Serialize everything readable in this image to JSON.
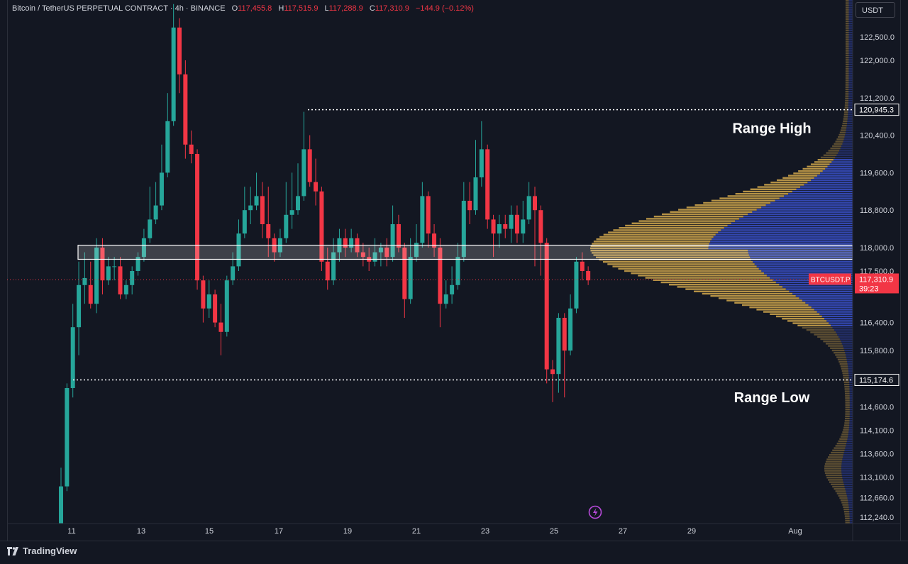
{
  "header": {
    "symbol": "Bitcoin / TetherUS PERPETUAL CONTRACT · 4h · BINANCE",
    "open_label": "O",
    "open": "117,455.8",
    "high_label": "H",
    "high": "117,515.9",
    "low_label": "L",
    "low": "117,288.9",
    "close_label": "C",
    "close": "117,310.9",
    "change": "−144.9 (−0.12%)"
  },
  "currency": "USDT",
  "brand": "TradingView",
  "colors": {
    "up": "#26a69a",
    "down": "#f23645",
    "background": "#131722",
    "vp_up": "#c8a04a",
    "vp_down": "#3a50c8"
  },
  "chart_data": {
    "type": "candlestick",
    "title": "",
    "x_ticks": [
      "11",
      "13",
      "15",
      "17",
      "19",
      "21",
      "23",
      "25",
      "27",
      "29",
      "Aug"
    ],
    "y_ticks": [
      "122,500.0",
      "122,000.0",
      "121,200.0",
      "120,400.0",
      "119,600.0",
      "118,800.0",
      "118,000.0",
      "117,500.0",
      "116,400.0",
      "115,800.0",
      "114,600.0",
      "114,100.0",
      "113,600.0",
      "113,100.0",
      "112,660.0",
      "112,240.0"
    ],
    "ylim": [
      112100,
      123300
    ],
    "candles": [
      [
        111400,
        112900,
        111100,
        113300
      ],
      [
        112900,
        115000,
        112800,
        115100
      ],
      [
        115000,
        116300,
        114800,
        116800
      ],
      [
        116300,
        117200,
        115700,
        117700
      ],
      [
        117200,
        117350,
        116800,
        117900
      ],
      [
        117200,
        116800,
        116700,
        117700
      ],
      [
        116800,
        118000,
        116600,
        118200
      ],
      [
        118000,
        117300,
        117000,
        118200
      ],
      [
        117300,
        117600,
        117200,
        117800
      ],
      [
        117600,
        117600,
        117300,
        117800
      ],
      [
        117600,
        117000,
        116900,
        117800
      ],
      [
        117000,
        117200,
        116900,
        117300
      ],
      [
        117200,
        117500,
        117000,
        117600
      ],
      [
        117500,
        117800,
        117400,
        117900
      ],
      [
        117800,
        118200,
        117700,
        118400
      ],
      [
        118200,
        118600,
        118100,
        119300
      ],
      [
        118600,
        118900,
        118500,
        119400
      ],
      [
        118900,
        119600,
        118800,
        120200
      ],
      [
        119600,
        120700,
        119500,
        121300
      ],
      [
        120700,
        122700,
        120600,
        123200
      ],
      [
        122700,
        121700,
        121300,
        122900
      ],
      [
        121700,
        120200,
        119900,
        122000
      ],
      [
        120200,
        120000,
        119800,
        120500
      ],
      [
        120000,
        117300,
        117100,
        120100
      ],
      [
        117300,
        116700,
        116400,
        117400
      ],
      [
        116700,
        117000,
        116500,
        117300
      ],
      [
        117000,
        116400,
        116300,
        117100
      ],
      [
        116400,
        116200,
        115700,
        116800
      ],
      [
        116200,
        117300,
        116100,
        117400
      ],
      [
        117300,
        117600,
        117200,
        117900
      ],
      [
        117600,
        118300,
        117500,
        118600
      ],
      [
        118300,
        118800,
        118200,
        119300
      ],
      [
        118800,
        118900,
        118500,
        119300
      ],
      [
        118900,
        119100,
        118800,
        119600
      ],
      [
        119100,
        118500,
        118200,
        119400
      ],
      [
        118500,
        118200,
        117800,
        119300
      ],
      [
        118200,
        117900,
        117700,
        118300
      ],
      [
        117900,
        118200,
        117800,
        118400
      ],
      [
        118200,
        118700,
        118100,
        119400
      ],
      [
        118700,
        118800,
        118400,
        119600
      ],
      [
        118800,
        119100,
        118700,
        119800
      ],
      [
        119100,
        120100,
        119000,
        120900
      ],
      [
        120100,
        119400,
        119300,
        120400
      ],
      [
        119400,
        119200,
        118900,
        119900
      ],
      [
        119200,
        117700,
        117500,
        119300
      ],
      [
        117700,
        117300,
        117100,
        118000
      ],
      [
        117300,
        117900,
        117200,
        118200
      ],
      [
        117900,
        118200,
        117700,
        118400
      ],
      [
        118200,
        118000,
        117800,
        118400
      ],
      [
        118000,
        118200,
        117900,
        118400
      ],
      [
        118200,
        117900,
        117800,
        118300
      ],
      [
        117900,
        117800,
        117600,
        118100
      ],
      [
        117800,
        117700,
        117500,
        118000
      ],
      [
        117700,
        117900,
        117600,
        118200
      ],
      [
        117900,
        118000,
        117600,
        118100
      ],
      [
        118000,
        117800,
        117600,
        118200
      ],
      [
        117800,
        118500,
        117700,
        118900
      ],
      [
        118500,
        118000,
        117900,
        118700
      ],
      [
        118000,
        116900,
        116500,
        118100
      ],
      [
        116900,
        117800,
        116800,
        118200
      ],
      [
        117800,
        118100,
        117700,
        118500
      ],
      [
        118100,
        119100,
        118000,
        119400
      ],
      [
        119100,
        118300,
        118000,
        119200
      ],
      [
        118300,
        118000,
        117800,
        118500
      ],
      [
        118000,
        116800,
        116300,
        118200
      ],
      [
        116800,
        117000,
        116700,
        117300
      ],
      [
        117000,
        117200,
        116800,
        117600
      ],
      [
        117200,
        117800,
        117100,
        118100
      ],
      [
        117800,
        119000,
        117700,
        119400
      ],
      [
        119000,
        118800,
        118500,
        119400
      ],
      [
        118800,
        119500,
        118700,
        120300
      ],
      [
        119500,
        120100,
        119300,
        120700
      ],
      [
        120100,
        118600,
        118400,
        120200
      ],
      [
        118600,
        118300,
        117800,
        118700
      ],
      [
        118300,
        118500,
        118000,
        118700
      ],
      [
        118500,
        118400,
        118200,
        118700
      ],
      [
        118400,
        118700,
        118100,
        118900
      ],
      [
        118700,
        118300,
        118100,
        118900
      ],
      [
        118300,
        118600,
        118100,
        119000
      ],
      [
        118600,
        119100,
        118500,
        119400
      ],
      [
        119100,
        118800,
        117600,
        119300
      ],
      [
        118800,
        118100,
        117400,
        118900
      ],
      [
        118100,
        115400,
        115100,
        118200
      ],
      [
        115400,
        115300,
        114700,
        115600
      ],
      [
        115300,
        116500,
        114900,
        116600
      ],
      [
        116500,
        115800,
        114800,
        116600
      ],
      [
        115800,
        116700,
        115700,
        117000
      ],
      [
        116700,
        117700,
        116600,
        117800
      ],
      [
        117700,
        117500,
        117300,
        117900
      ],
      [
        117500,
        117300,
        117200,
        117600
      ]
    ],
    "horizontal_levels": [
      {
        "value": 120945.3,
        "label": "120,945.3"
      },
      {
        "value": 115174.6,
        "label": "115,174.6"
      }
    ],
    "highlight_zone": [
      117750,
      118050
    ],
    "annotations": [
      {
        "text": "Range High",
        "y": 120550
      },
      {
        "text": "Range Low",
        "y": 114800
      }
    ],
    "current_price": {
      "symbol": "BTCUSDT.P",
      "value": 117310.9,
      "label": "117,310.9",
      "countdown": "39:23"
    },
    "volume_profile": {
      "poc": 118000,
      "value_area": [
        116350,
        119900
      ]
    }
  }
}
